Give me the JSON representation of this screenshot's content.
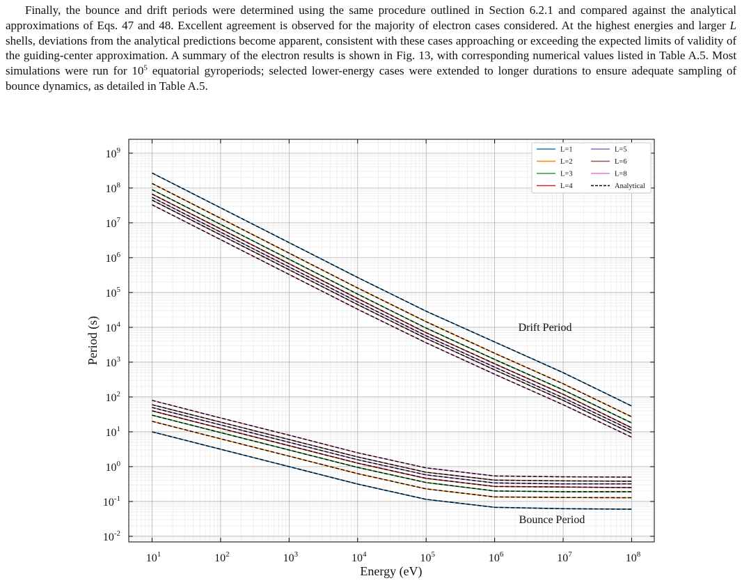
{
  "paragraph": [
    "Finally, the bounce and drift periods were determined using the same procedure outlined in Section 6.2.1 and compared against the analytical approximations of Eqs. 47 and 48.  Excellent agreement is observed for the majority of electron cases considered. At the highest energies and larger ",
    "L",
    " shells, deviations from the analytical predictions become apparent, consistent with these cases approaching or exceeding the expected limits of validity of the guiding-center approximation.  A summary of the electron results is shown in Fig. 13, with corresponding numerical values listed in Table A.5. Most simulations were run for 10",
    "5",
    " equatorial gyroperiods; selected lower-energy cases were extended to longer durations to ensure adequate sampling of bounce dynamics, as detailed in Table A.5."
  ],
  "chart_data": {
    "type": "line",
    "xscale": "log",
    "yscale": "log",
    "grid": true,
    "legend": "upper right",
    "xlabel": "Energy (eV)",
    "ylabel": "Period (s)",
    "xlim": [
      4.57,
      214000000.0
    ],
    "ylim": [
      0.0069,
      2500000000.0
    ],
    "xticks": [
      {
        "value": 10,
        "label": "10",
        "exponent": "1"
      },
      {
        "value": 100,
        "label": "10",
        "exponent": "2"
      },
      {
        "value": 1000,
        "label": "10",
        "exponent": "3"
      },
      {
        "value": 10000,
        "label": "10",
        "exponent": "4"
      },
      {
        "value": 100000,
        "label": "10",
        "exponent": "5"
      },
      {
        "value": 1000000,
        "label": "10",
        "exponent": "6"
      },
      {
        "value": 10000000,
        "label": "10",
        "exponent": "7"
      },
      {
        "value": 100000000,
        "label": "10",
        "exponent": "8"
      }
    ],
    "yticks": [
      {
        "value": 0.01,
        "label": "10",
        "exponent": "-2"
      },
      {
        "value": 0.1,
        "label": "10",
        "exponent": "-1"
      },
      {
        "value": 1,
        "label": "10",
        "exponent": "0"
      },
      {
        "value": 10,
        "label": "10",
        "exponent": "1"
      },
      {
        "value": 100,
        "label": "10",
        "exponent": "2"
      },
      {
        "value": 1000,
        "label": "10",
        "exponent": "3"
      },
      {
        "value": 10000,
        "label": "10",
        "exponent": "4"
      },
      {
        "value": 100000,
        "label": "10",
        "exponent": "5"
      },
      {
        "value": 1000000,
        "label": "10",
        "exponent": "6"
      },
      {
        "value": 10000000,
        "label": "10",
        "exponent": "7"
      },
      {
        "value": 100000000,
        "label": "10",
        "exponent": "8"
      },
      {
        "value": 1000000000,
        "label": "10",
        "exponent": "9"
      }
    ],
    "x": [
      10,
      100,
      1000,
      10000,
      100000,
      1000000,
      10000000,
      100000000
    ],
    "series": [
      {
        "name": "L=1",
        "color": "#1f77b4",
        "drift": [
          270000000.0,
          27000000.0,
          2700000.0,
          270000.0,
          29000.0,
          3800,
          500,
          55
        ],
        "bounce": [
          10,
          3.16,
          1,
          0.316,
          0.115,
          0.068,
          0.062,
          0.06
        ]
      },
      {
        "name": "L=2",
        "color": "#ff7f0e",
        "drift": [
          135000000.0,
          13500000.0,
          1350000.0,
          135000.0,
          14500.0,
          1800,
          240,
          27
        ],
        "bounce": [
          20,
          6.3,
          2,
          0.63,
          0.23,
          0.135,
          0.13,
          0.128
        ]
      },
      {
        "name": "L=3",
        "color": "#2ca02c",
        "drift": [
          90000000.0,
          9000000.0,
          900000.0,
          90000.0,
          9500,
          1200,
          160,
          18
        ],
        "bounce": [
          30,
          9.5,
          3,
          0.95,
          0.35,
          0.2,
          0.19,
          0.19
        ]
      },
      {
        "name": "L=4",
        "color": "#d62728",
        "drift": [
          67000000.0,
          6700000.0,
          670000.0,
          67000.0,
          7000,
          900,
          120,
          13
        ],
        "bounce": [
          40,
          12.6,
          4,
          1.26,
          0.46,
          0.27,
          0.26,
          0.25
        ]
      },
      {
        "name": "L=5",
        "color": "#9467bd",
        "drift": [
          54000000.0,
          5400000.0,
          540000.0,
          54000.0,
          5700,
          720,
          95,
          11
        ],
        "bounce": [
          50,
          15.8,
          5,
          1.58,
          0.58,
          0.34,
          0.32,
          0.32
        ]
      },
      {
        "name": "L=6",
        "color": "#8c564b",
        "drift": [
          45000000.0,
          4500000.0,
          450000.0,
          45000.0,
          4800,
          600,
          80,
          9
        ],
        "bounce": [
          60,
          19,
          6,
          1.9,
          0.69,
          0.41,
          0.39,
          0.38
        ]
      },
      {
        "name": "L=8",
        "color": "#e377c2",
        "drift": [
          33000000.0,
          3300000.0,
          330000.0,
          33000.0,
          3600,
          450,
          60,
          7
        ],
        "bounce": [
          80,
          25,
          8,
          2.5,
          0.92,
          0.54,
          0.51,
          0.5
        ]
      }
    ],
    "analytical": {
      "name": "Analytical",
      "color": "#000000",
      "drift": [
        [
          270000000.0,
          27000000.0,
          2700000.0,
          270000.0,
          29000.0,
          3800,
          500,
          55
        ],
        [
          135000000.0,
          13500000.0,
          1350000.0,
          135000.0,
          14500.0,
          1800,
          240,
          27
        ],
        [
          90000000.0,
          9000000.0,
          900000.0,
          90000.0,
          9500,
          1200,
          160,
          18
        ],
        [
          67000000.0,
          6700000.0,
          670000.0,
          67000.0,
          7000,
          900,
          120,
          13
        ],
        [
          54000000.0,
          5400000.0,
          540000.0,
          54000.0,
          5700,
          720,
          95,
          11
        ],
        [
          45000000.0,
          4500000.0,
          450000.0,
          45000.0,
          4800,
          600,
          80,
          9
        ],
        [
          33000000.0,
          3300000.0,
          330000.0,
          33000.0,
          3600,
          450,
          60,
          7
        ]
      ],
      "bounce": [
        [
          10,
          3.16,
          1,
          0.316,
          0.115,
          0.068,
          0.062,
          0.06
        ],
        [
          20,
          6.3,
          2,
          0.63,
          0.23,
          0.135,
          0.13,
          0.128
        ],
        [
          30,
          9.5,
          3,
          0.95,
          0.35,
          0.2,
          0.19,
          0.19
        ],
        [
          40,
          12.6,
          4,
          1.26,
          0.46,
          0.27,
          0.26,
          0.25
        ],
        [
          50,
          15.8,
          5,
          1.58,
          0.58,
          0.34,
          0.32,
          0.32
        ],
        [
          60,
          19,
          6,
          1.9,
          0.69,
          0.41,
          0.39,
          0.38
        ],
        [
          80,
          25,
          8,
          2.5,
          0.92,
          0.54,
          0.51,
          0.5
        ]
      ]
    },
    "annotations": [
      "Drift Period",
      "Bounce Period"
    ]
  }
}
